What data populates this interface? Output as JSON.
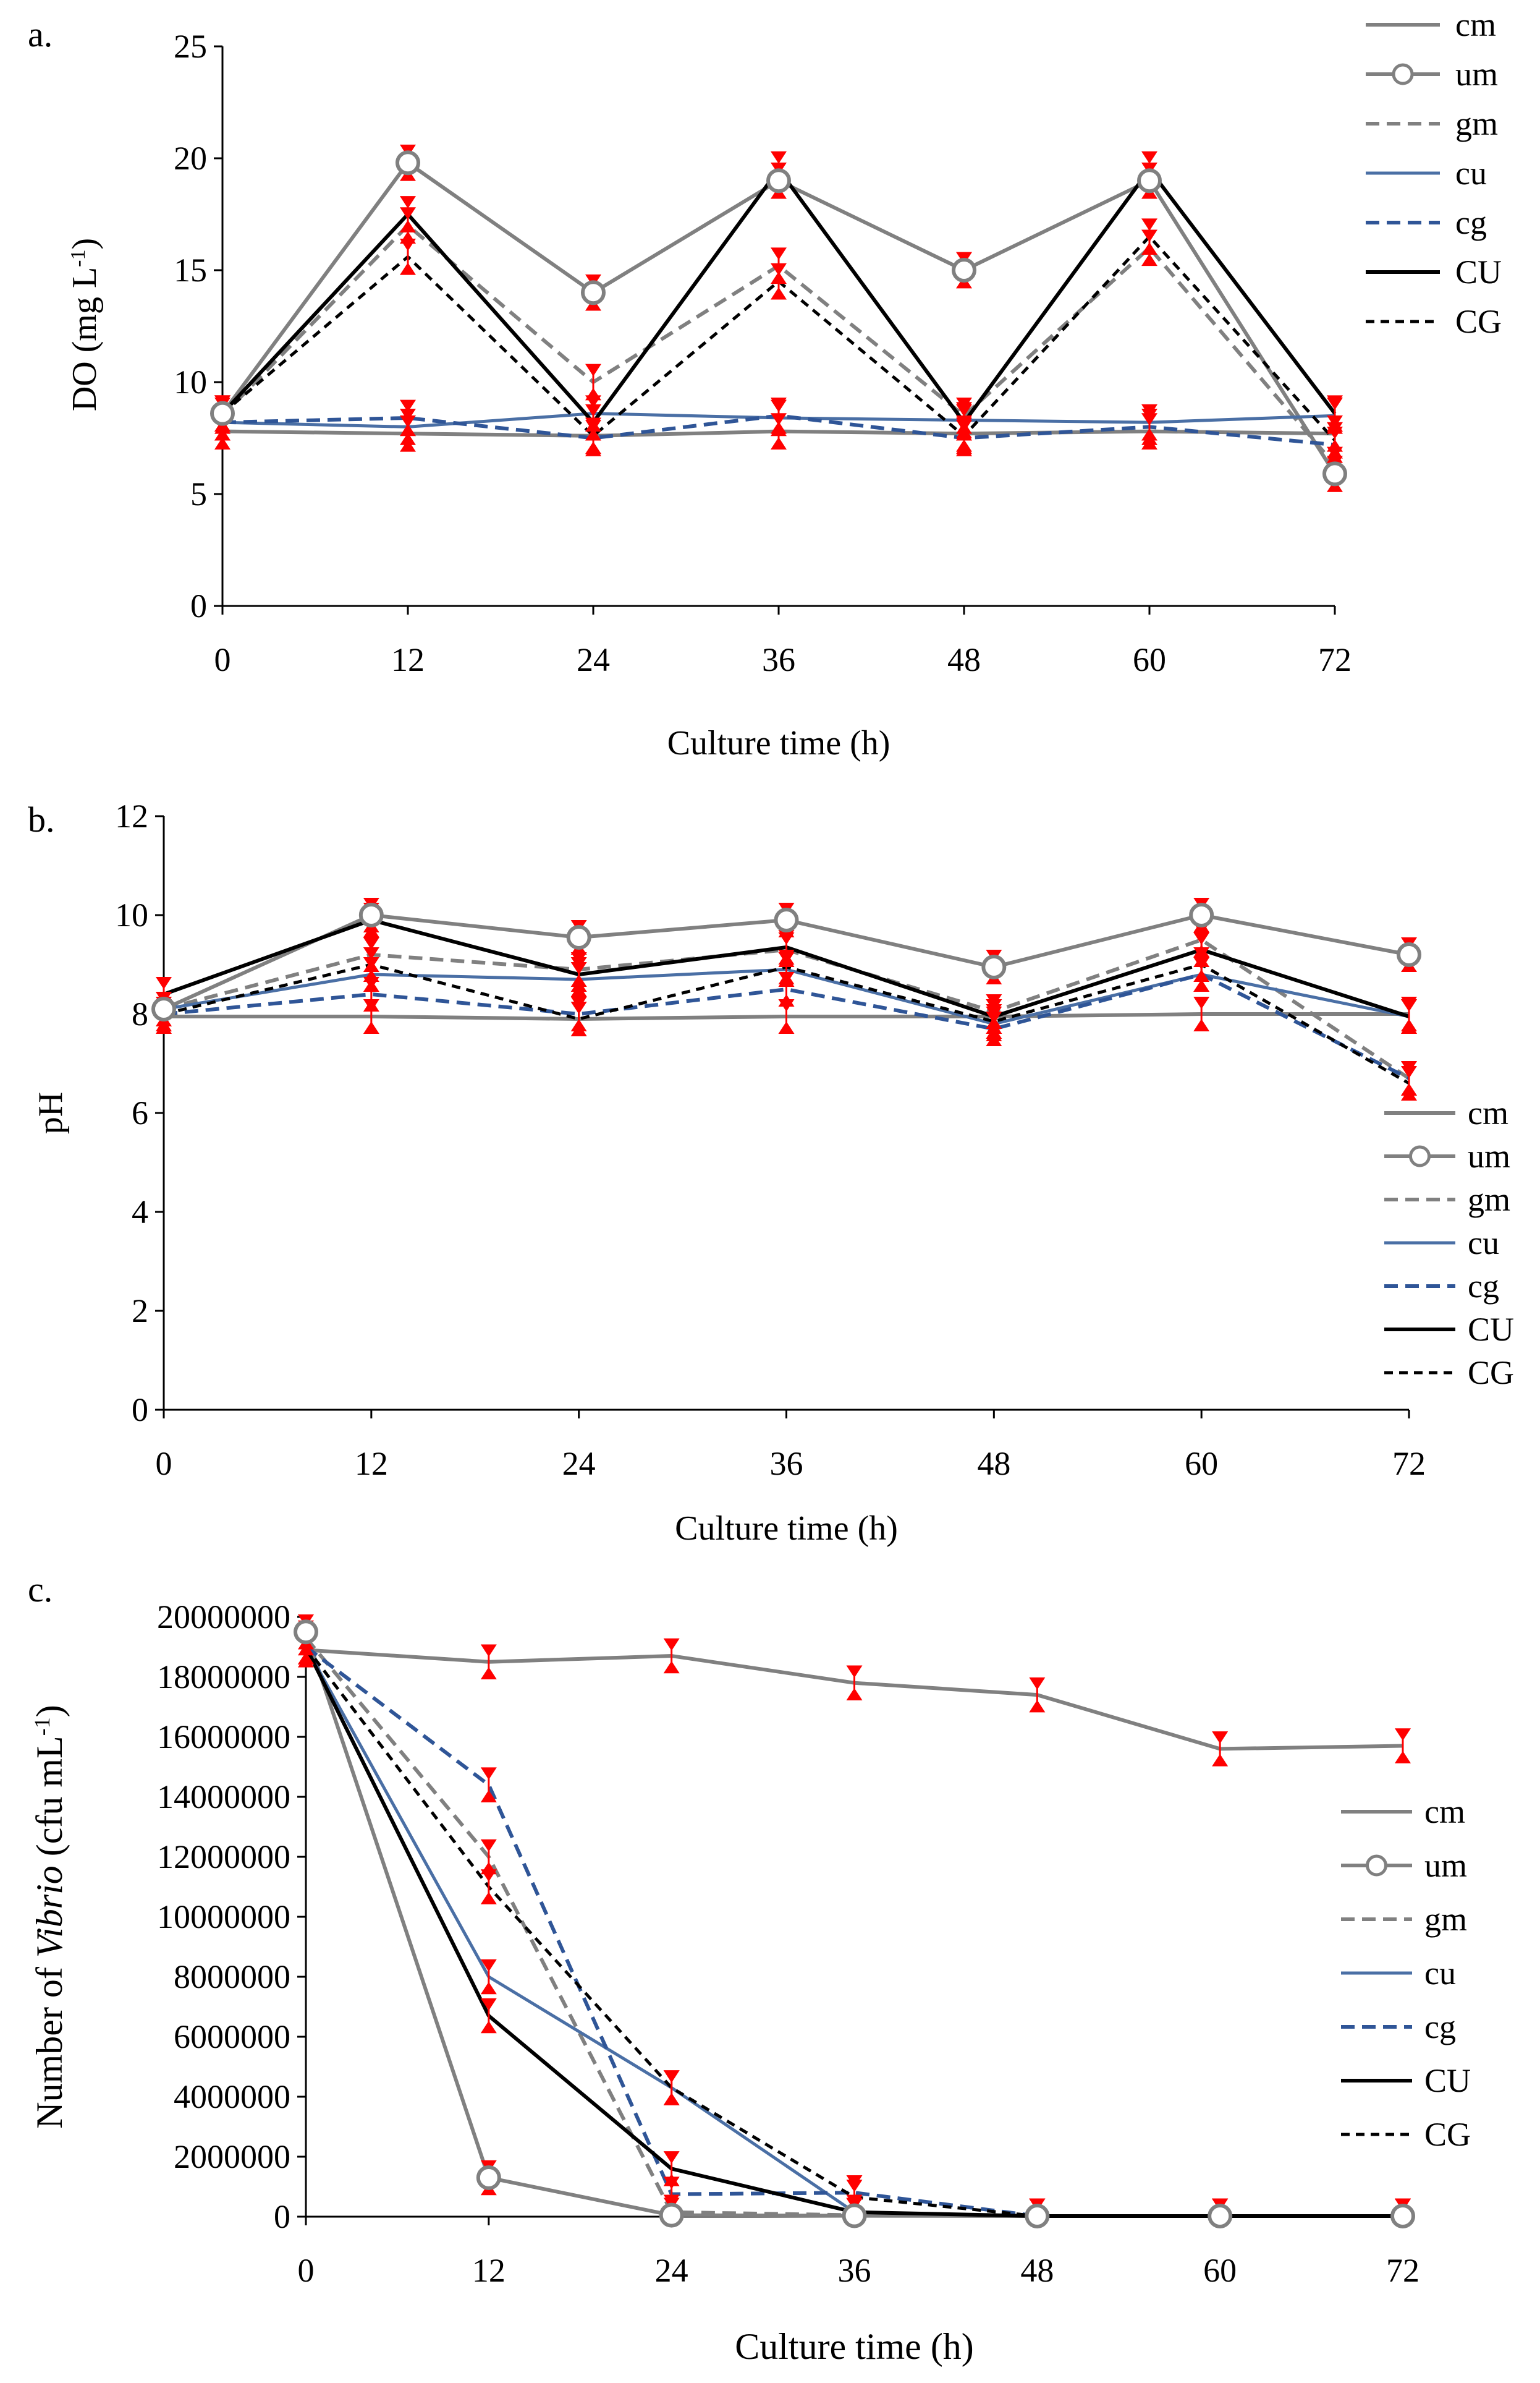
{
  "colors": {
    "cm": "#808080",
    "um": "#808080",
    "gm": "#808080",
    "cu": "#4a6fa5",
    "cg": "#2f5597",
    "CU": "#000000",
    "CG": "#000000",
    "error": "#ff0000",
    "axis": "#000000"
  },
  "chart_data": [
    {
      "panel_label": "a.",
      "type": "line",
      "title": "",
      "xlabel": "Culture time (h)",
      "ylabel": "DO (mg L",
      "ylabel_sup": "-1",
      "ylabel_end": ")",
      "x": [
        0,
        12,
        24,
        36,
        48,
        60,
        72
      ],
      "xlim": [
        0,
        72
      ],
      "ylim": [
        0,
        25
      ],
      "xticks": [
        "0",
        "12",
        "24",
        "36",
        "48",
        "60",
        "72"
      ],
      "yticks": [
        "0",
        "5",
        "10",
        "15",
        "20",
        "25"
      ],
      "legend_position": "top-right",
      "series": [
        {
          "name": "cm",
          "values": [
            7.8,
            7.7,
            7.6,
            7.8,
            7.7,
            7.8,
            7.7
          ]
        },
        {
          "name": "um",
          "values": [
            8.6,
            19.8,
            14.0,
            19.0,
            15.0,
            19.0,
            5.9
          ]
        },
        {
          "name": "gm",
          "values": [
            8.5,
            17.0,
            10.0,
            15.2,
            8.5,
            16.0,
            6.3
          ]
        },
        {
          "name": "cu",
          "values": [
            8.2,
            8.0,
            8.6,
            8.4,
            8.3,
            8.2,
            8.5
          ]
        },
        {
          "name": "cg",
          "values": [
            8.2,
            8.4,
            7.5,
            8.5,
            7.5,
            8.0,
            7.2
          ]
        },
        {
          "name": "CU",
          "values": [
            8.6,
            17.5,
            8.2,
            19.5,
            8.2,
            19.5,
            8.6
          ]
        },
        {
          "name": "CG",
          "values": [
            8.6,
            15.6,
            7.6,
            14.5,
            7.6,
            16.5,
            7.4
          ]
        }
      ]
    },
    {
      "panel_label": "b.",
      "type": "line",
      "title": "",
      "xlabel": "Culture time (h)",
      "ylabel": "pH",
      "ylabel_sup": "",
      "ylabel_end": "",
      "x": [
        0,
        12,
        24,
        36,
        48,
        60,
        72
      ],
      "xlim": [
        0,
        72
      ],
      "ylim": [
        0,
        12
      ],
      "xticks": [
        "0",
        "12",
        "24",
        "36",
        "48",
        "60",
        "72"
      ],
      "yticks": [
        "0",
        "2",
        "4",
        "6",
        "8",
        "10",
        "12"
      ],
      "legend_position": "right",
      "series": [
        {
          "name": "cm",
          "values": [
            7.95,
            7.95,
            7.9,
            7.95,
            7.95,
            8.0,
            8.0
          ]
        },
        {
          "name": "um",
          "values": [
            8.1,
            10.0,
            9.55,
            9.9,
            8.95,
            10.0,
            9.2
          ]
        },
        {
          "name": "gm",
          "values": [
            8.1,
            9.2,
            8.9,
            9.3,
            8.05,
            9.5,
            6.7
          ]
        },
        {
          "name": "cu",
          "values": [
            8.1,
            8.8,
            8.7,
            8.9,
            7.8,
            8.8,
            7.95
          ]
        },
        {
          "name": "cg",
          "values": [
            8.0,
            8.4,
            8.0,
            8.5,
            7.7,
            8.8,
            6.7
          ]
        },
        {
          "name": "CU",
          "values": [
            8.4,
            9.9,
            8.8,
            9.35,
            7.95,
            9.3,
            7.95
          ]
        },
        {
          "name": "CG",
          "values": [
            8.0,
            9.0,
            7.9,
            8.95,
            7.85,
            9.0,
            6.6
          ]
        }
      ]
    },
    {
      "panel_label": "c.",
      "type": "line",
      "title": "",
      "xlabel": "Culture time (h)",
      "ylabel": "Number of ",
      "ylabel_italic": "Vibrio",
      "ylabel_tail": " (cfu mL",
      "ylabel_sup": "-1",
      "ylabel_end": ")",
      "x": [
        0,
        12,
        24,
        36,
        48,
        60,
        72
      ],
      "xlim": [
        0,
        72
      ],
      "ylim": [
        0,
        20000000
      ],
      "xticks": [
        "0",
        "12",
        "24",
        "36",
        "48",
        "60",
        "72"
      ],
      "yticks": [
        "0",
        "2000000",
        "4000000",
        "6000000",
        "8000000",
        "10000000",
        "12000000",
        "14000000",
        "16000000",
        "18000000",
        "20000000"
      ],
      "legend_position": "right",
      "series": [
        {
          "name": "cm",
          "values": [
            18900000,
            18500000,
            18700000,
            17800000,
            17400000,
            15600000,
            15700000
          ]
        },
        {
          "name": "um",
          "values": [
            19500000,
            1300000,
            50000,
            30000,
            20000,
            20000,
            20000
          ]
        },
        {
          "name": "gm",
          "values": [
            19300000,
            12000000,
            150000,
            50000,
            20000,
            20000,
            20000
          ]
        },
        {
          "name": "cu",
          "values": [
            19000000,
            8000000,
            4300000,
            150000,
            20000,
            20000,
            20000
          ]
        },
        {
          "name": "cg",
          "values": [
            19000000,
            14400000,
            750000,
            800000,
            20000,
            20000,
            20000
          ]
        },
        {
          "name": "CU",
          "values": [
            19000000,
            6700000,
            1600000,
            150000,
            20000,
            20000,
            20000
          ]
        },
        {
          "name": "CG",
          "values": [
            19000000,
            11000000,
            4300000,
            650000,
            20000,
            20000,
            20000
          ]
        }
      ]
    }
  ]
}
